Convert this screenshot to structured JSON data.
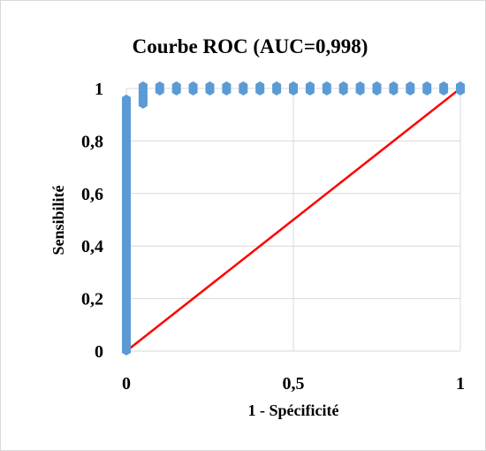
{
  "chart_data": {
    "type": "scatter",
    "title": "Courbe  ROC (AUC=0,998)",
    "xlabel": "1 - Spécificité",
    "ylabel": "Sensibilité",
    "xlim": [
      0,
      1
    ],
    "ylim": [
      0,
      1
    ],
    "x_ticks": [
      0,
      0.5,
      1
    ],
    "x_tick_labels": [
      "0",
      "0,5",
      "1"
    ],
    "y_ticks": [
      0,
      0.2,
      0.4,
      0.6,
      0.8,
      1
    ],
    "y_tick_labels": [
      "0",
      "0,2",
      "0,4",
      "0,6",
      "0,8",
      "1"
    ],
    "grid": true,
    "legend": "none",
    "series": [
      {
        "marker_color": "#5b9bd5",
        "points": [
          [
            0,
            0.01
          ],
          [
            0,
            0.03
          ],
          [
            0,
            0.05
          ],
          [
            0,
            0.07
          ],
          [
            0,
            0.09
          ],
          [
            0,
            0.11
          ],
          [
            0,
            0.13
          ],
          [
            0,
            0.15
          ],
          [
            0,
            0.17
          ],
          [
            0,
            0.19
          ],
          [
            0,
            0.21
          ],
          [
            0,
            0.23
          ],
          [
            0,
            0.25
          ],
          [
            0,
            0.27
          ],
          [
            0,
            0.29
          ],
          [
            0,
            0.31
          ],
          [
            0,
            0.33
          ],
          [
            0,
            0.35
          ],
          [
            0,
            0.37
          ],
          [
            0,
            0.39
          ],
          [
            0,
            0.41
          ],
          [
            0,
            0.43
          ],
          [
            0,
            0.45
          ],
          [
            0,
            0.47
          ],
          [
            0,
            0.49
          ],
          [
            0,
            0.51
          ],
          [
            0,
            0.53
          ],
          [
            0,
            0.55
          ],
          [
            0,
            0.57
          ],
          [
            0,
            0.59
          ],
          [
            0,
            0.61
          ],
          [
            0,
            0.63
          ],
          [
            0,
            0.65
          ],
          [
            0,
            0.67
          ],
          [
            0,
            0.69
          ],
          [
            0,
            0.71
          ],
          [
            0,
            0.73
          ],
          [
            0,
            0.75
          ],
          [
            0,
            0.77
          ],
          [
            0,
            0.79
          ],
          [
            0,
            0.81
          ],
          [
            0,
            0.83
          ],
          [
            0,
            0.85
          ],
          [
            0,
            0.87
          ],
          [
            0,
            0.89
          ],
          [
            0,
            0.91
          ],
          [
            0,
            0.93
          ],
          [
            0,
            0.95
          ],
          [
            0.05,
            0.95
          ],
          [
            0.05,
            0.97
          ],
          [
            0.05,
            1
          ],
          [
            0.1,
            1
          ],
          [
            0.15,
            1
          ],
          [
            0.2,
            1
          ],
          [
            0.25,
            1
          ],
          [
            0.3,
            1
          ],
          [
            0.35,
            1
          ],
          [
            0.4,
            1
          ],
          [
            0.45,
            1
          ],
          [
            0.5,
            1
          ],
          [
            0.55,
            1
          ],
          [
            0.6,
            1
          ],
          [
            0.65,
            1
          ],
          [
            0.7,
            1
          ],
          [
            0.75,
            1
          ],
          [
            0.8,
            1
          ],
          [
            0.85,
            1
          ],
          [
            0.9,
            1
          ],
          [
            0.95,
            1
          ],
          [
            1,
            1
          ]
        ]
      }
    ],
    "reference_line": {
      "points": [
        [
          0,
          0
        ],
        [
          1,
          1
        ]
      ],
      "color": "#ff0000"
    }
  }
}
